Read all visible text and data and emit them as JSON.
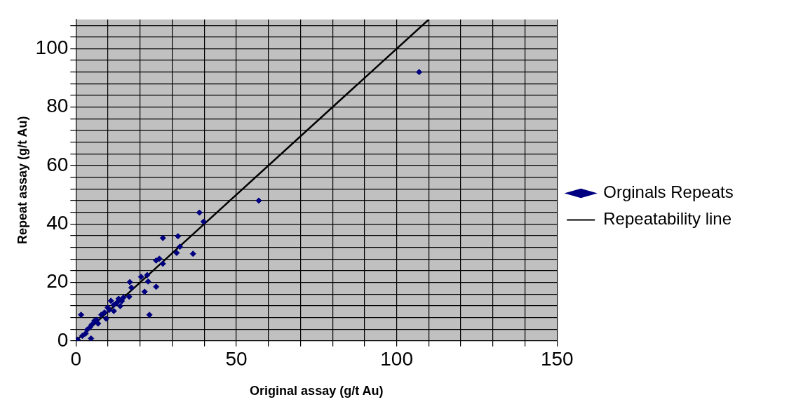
{
  "chart_data": {
    "type": "scatter",
    "xlabel": "Original assay (g/t Au)",
    "ylabel": "Repeat assay (g/t Au)",
    "xlim": [
      0,
      150
    ],
    "ylim": [
      0,
      110
    ],
    "xticks": [
      0,
      {
        "value": 10,
        "label": null
      },
      {
        "value": 20,
        "label": null
      },
      {
        "value": 30,
        "label": null
      },
      {
        "value": 40,
        "label": null
      },
      50,
      {
        "value": 60,
        "label": null
      },
      {
        "value": 70,
        "label": null
      },
      {
        "value": 80,
        "label": null
      },
      {
        "value": 90,
        "label": null
      },
      100,
      {
        "value": 110,
        "label": null
      },
      {
        "value": 120,
        "label": null
      },
      {
        "value": 130,
        "label": null
      },
      {
        "value": 140,
        "label": null
      },
      150
    ],
    "yticks": [
      0,
      {
        "value": 4,
        "label": null
      },
      {
        "value": 8,
        "label": null
      },
      {
        "value": 12,
        "label": null
      },
      {
        "value": 16,
        "label": null
      },
      20,
      {
        "value": 24,
        "label": null
      },
      {
        "value": 28,
        "label": null
      },
      {
        "value": 32,
        "label": null
      },
      {
        "value": 36,
        "label": null
      },
      40,
      {
        "value": 44,
        "label": null
      },
      {
        "value": 48,
        "label": null
      },
      {
        "value": 52,
        "label": null
      },
      {
        "value": 56,
        "label": null
      },
      60,
      {
        "value": 64,
        "label": null
      },
      {
        "value": 68,
        "label": null
      },
      {
        "value": 72,
        "label": null
      },
      {
        "value": 76,
        "label": null
      },
      80,
      {
        "value": 84,
        "label": null
      },
      {
        "value": 88,
        "label": null
      },
      {
        "value": 92,
        "label": null
      },
      {
        "value": 96,
        "label": null
      },
      100,
      {
        "value": 104,
        "label": null
      },
      {
        "value": 108,
        "label": null
      }
    ],
    "grid": true,
    "legend": "right",
    "marker": "diamond",
    "series": [
      {
        "name": "Orginals Repeats",
        "type": "scatter",
        "color": "#000080",
        "x": [
          107,
          57,
          38.5,
          39.8,
          27.1,
          31.8,
          32.4,
          31.4,
          36.5,
          25,
          26,
          27.1,
          20.3,
          22.2,
          22.5,
          16.8,
          17.3,
          25,
          21.4,
          22.9,
          1.6,
          16.6,
          14.8,
          13.3,
          10.9,
          14.3,
          12.8,
          11.8,
          13.8,
          9.9,
          11.8,
          10.4,
          8.9,
          7.9,
          9.4,
          6.4,
          6.9,
          4.9,
          4.4,
          3.5,
          4.7,
          0.5,
          5.7,
          3,
          2
        ],
        "values": [
          92,
          48,
          43.9,
          40.8,
          35.2,
          35.8,
          32.2,
          30.1,
          29.8,
          27.5,
          28.1,
          26.4,
          21.9,
          22.5,
          20.3,
          20.1,
          18.2,
          18.5,
          16.8,
          8.9,
          8.9,
          15.1,
          14.8,
          14.4,
          13.7,
          13.6,
          13.1,
          12.3,
          11.9,
          11.4,
          10.2,
          10.6,
          9.7,
          8.9,
          7.6,
          7.2,
          5.9,
          5.5,
          4.7,
          3.8,
          0.8,
          0.4,
          6.8,
          2.5,
          1.7
        ]
      },
      {
        "name": "Repeatability line",
        "type": "line",
        "color": "#000000",
        "marker": "none",
        "line_style": "solid",
        "x": [
          0,
          110
        ],
        "values": [
          0,
          110
        ]
      }
    ]
  }
}
